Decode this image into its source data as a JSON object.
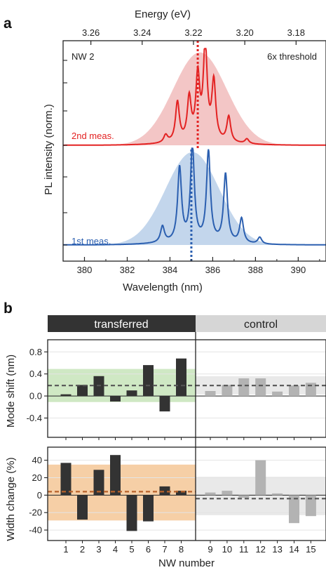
{
  "panel_a": {
    "letter": "a",
    "sample_label": "NW 2",
    "threshold_label": "6x threshold",
    "colors": {
      "meas2": "#e32222",
      "meas2_fill": "#f2c0c0",
      "meas1": "#2b5fb0",
      "meas1_fill": "#bcd2ea"
    }
  },
  "panel_b": {
    "letter": "b",
    "group_left": "transferred",
    "group_right": "control",
    "colors": {
      "bar_transferred": "#333333",
      "bar_control": "#b3b3b3",
      "band_green": "#cfe8c4",
      "band_orange": "#f6cfa6",
      "band_gray": "#e9e9e9",
      "dash_orange": "#b8622a",
      "dash_gray": "#555555"
    }
  },
  "chart_data": [
    {
      "type": "line",
      "panel": "a",
      "xlabel": "Wavelength (nm)",
      "top_xlabel": "Energy (eV)",
      "ylabel": "PL intensity (norm.)",
      "xlim": [
        379,
        391.3
      ],
      "x_ticks": [
        "380",
        "382",
        "384",
        "386",
        "388",
        "390"
      ],
      "top_ticks": [
        {
          "energy": "3.26",
          "wavelength_nm": 380.3
        },
        {
          "energy": "3.24",
          "wavelength_nm": 382.7
        },
        {
          "energy": "3.22",
          "wavelength_nm": 385.1
        },
        {
          "energy": "3.20",
          "wavelength_nm": 387.5
        },
        {
          "energy": "3.18",
          "wavelength_nm": 389.9
        }
      ],
      "series": [
        {
          "name": "2nd meas.",
          "offset": 1.0,
          "envelope_center_nm": 385.4,
          "envelope_sigma_nm": 1.25,
          "peaks_nm": [
            383.8,
            384.35,
            384.9,
            385.3,
            385.65,
            386.05,
            386.75,
            387.6
          ],
          "peaks_height": [
            0.08,
            0.42,
            0.45,
            0.67,
            1.0,
            0.62,
            0.27,
            0.05
          ],
          "vline_nm": 385.3
        },
        {
          "name": "1st meas.",
          "offset": 0.0,
          "envelope_center_nm": 385.05,
          "envelope_sigma_nm": 1.25,
          "peaks_nm": [
            383.65,
            384.45,
            385.05,
            385.8,
            386.6,
            387.35,
            388.2
          ],
          "peaks_height": [
            0.17,
            0.78,
            1.0,
            0.95,
            0.72,
            0.26,
            0.07
          ],
          "vline_nm": 385.0
        }
      ]
    },
    {
      "type": "bar",
      "panel": "b-top",
      "xlabel": "NW number",
      "ylabel": "Mode shift (nm)",
      "ylim": [
        -0.75,
        1.02
      ],
      "y_ticks": [
        "0.8",
        "0.4",
        "0.0",
        "-0.4"
      ],
      "categories": [
        "1",
        "2",
        "3",
        "4",
        "5",
        "6",
        "7",
        "8",
        "9",
        "10",
        "11",
        "12",
        "13",
        "14",
        "15"
      ],
      "values": [
        0.03,
        0.2,
        0.36,
        -0.1,
        0.1,
        0.56,
        -0.28,
        0.68,
        0.09,
        0.2,
        0.32,
        0.32,
        0.08,
        0.19,
        0.24
      ],
      "transferred_mean": 0.19,
      "transferred_band": [
        -0.11,
        0.49
      ],
      "control_mean": 0.19,
      "control_band": [
        0.03,
        0.36
      ]
    },
    {
      "type": "bar",
      "panel": "b-bottom",
      "xlabel": "NW number",
      "ylabel": "Width change (%)",
      "ylim": [
        -52,
        55
      ],
      "y_ticks": [
        "40",
        "20",
        "0",
        "-20",
        "-40"
      ],
      "categories": [
        "1",
        "2",
        "3",
        "4",
        "5",
        "6",
        "7",
        "8",
        "9",
        "10",
        "11",
        "12",
        "13",
        "14",
        "15"
      ],
      "values": [
        37,
        -28,
        29,
        46,
        -41,
        -30,
        10,
        5,
        3,
        5,
        -3,
        40,
        2,
        -32,
        -24
      ],
      "transferred_mean": 4,
      "transferred_band": [
        -29,
        35
      ],
      "control_mean": -4,
      "control_band": [
        -23,
        21
      ]
    }
  ]
}
